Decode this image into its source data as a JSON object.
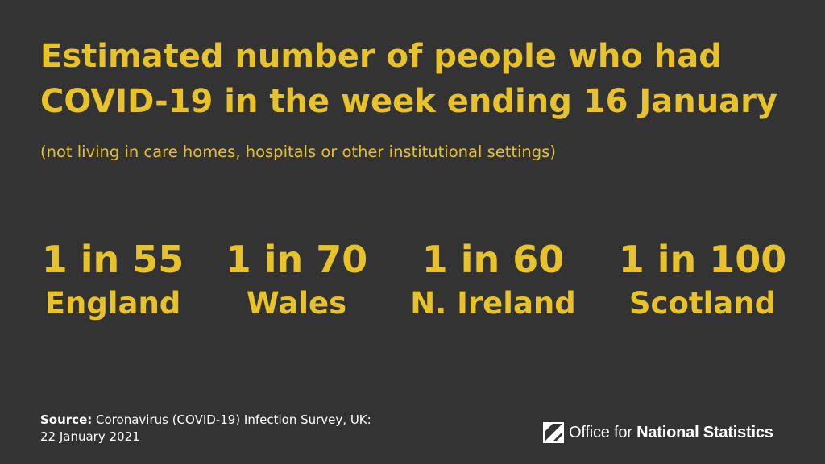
{
  "title": "Estimated number of people who had COVID-19 in the week ending 16 January",
  "subtitle": "(not living in care homes, hospitals or other institutional settings)",
  "stats": [
    {
      "value": "1 in 55",
      "region": "England"
    },
    {
      "value": "1 in 70",
      "region": "Wales"
    },
    {
      "value": "1 in 60",
      "region": "N. Ireland"
    },
    {
      "value": "1 in 100",
      "region": "Scotland"
    }
  ],
  "source": {
    "label": "Source:",
    "text": "Coronavirus (COVID-19) Infection Survey, UK:",
    "date": "22 January 2021"
  },
  "logo": {
    "prefix": "Office for ",
    "bold": "National Statistics",
    "icon": "ons-logo-icon"
  },
  "colors": {
    "background": "#333333",
    "accent": "#e8c22a",
    "text": "#ffffff"
  }
}
